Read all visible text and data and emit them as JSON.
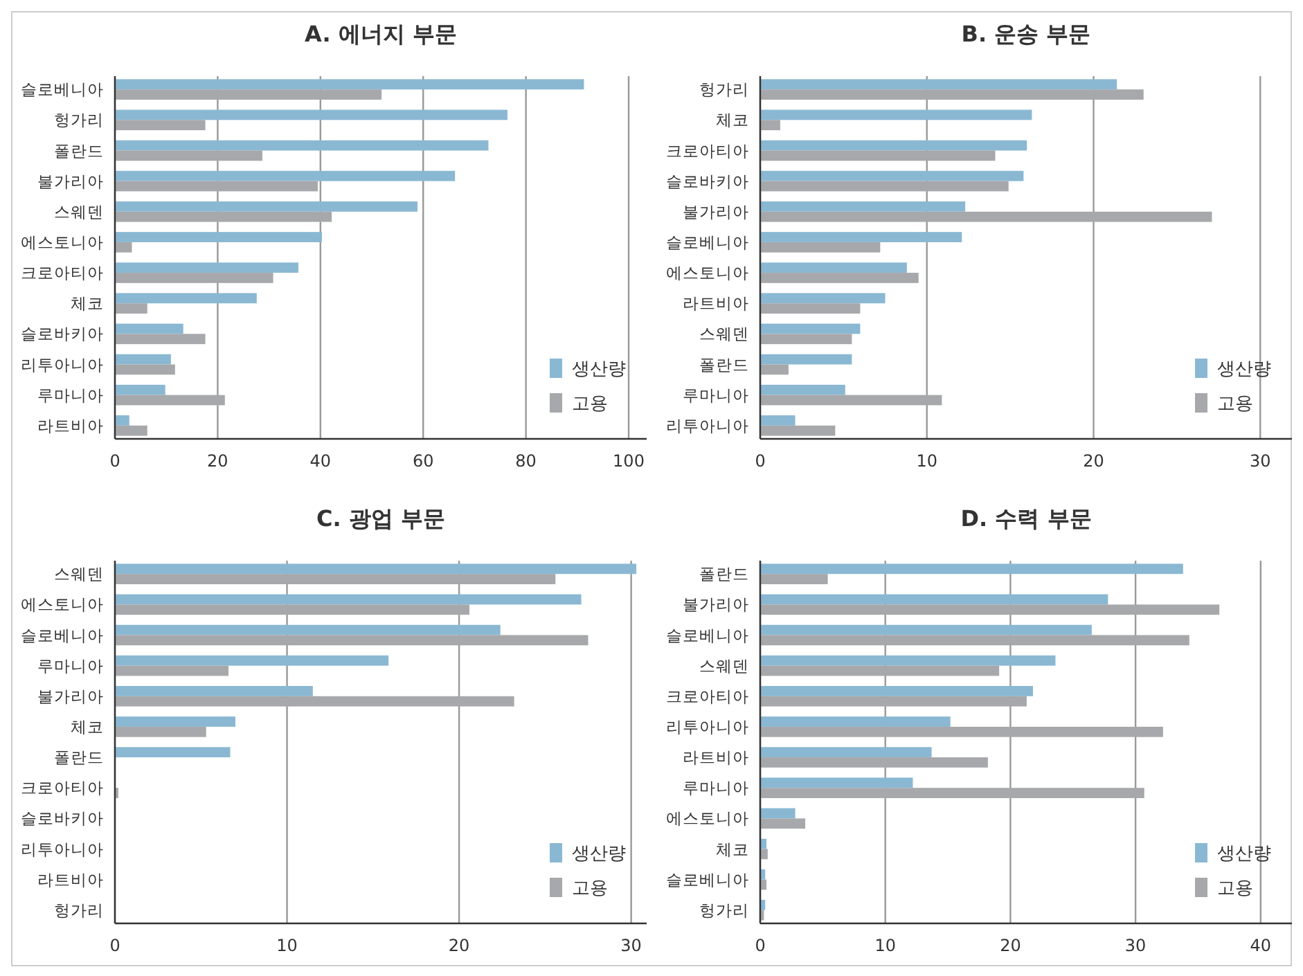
{
  "chart_data": [
    {
      "type": "bar",
      "orientation": "horizontal",
      "title": "A. 에너지 부문",
      "categories": [
        "슬로베니아",
        "헝가리",
        "폴란드",
        "불가리아",
        "스웨덴",
        "에스토니아",
        "크로아티아",
        "체코",
        "슬로바키아",
        "리투아니아",
        "루마니아",
        "라트비아"
      ],
      "series": [
        {
          "name": "생산량",
          "color": "#8ab8d3",
          "values": [
            91.3,
            76.4,
            72.7,
            66.2,
            58.9,
            40.3,
            35.7,
            27.6,
            13.3,
            10.9,
            9.8,
            2.8
          ]
        },
        {
          "name": "고용",
          "color": "#a7a8ab",
          "values": [
            51.9,
            17.6,
            28.7,
            39.5,
            42.2,
            3.3,
            30.8,
            6.3,
            17.6,
            11.7,
            21.4,
            6.3
          ]
        }
      ],
      "xlim": [
        0,
        103.5
      ],
      "xticks": [
        0,
        20,
        40,
        60,
        80,
        100
      ],
      "grid": "x",
      "legend": "bottom right"
    },
    {
      "type": "bar",
      "orientation": "horizontal",
      "title": "B. 운송 부문",
      "categories": [
        "헝가리",
        "체코",
        "크로아티아",
        "슬로바키아",
        "불가리아",
        "슬로베니아",
        "에스토니아",
        "라트비아",
        "스웨덴",
        "폴란드",
        "루마니아",
        "리투아니아"
      ],
      "series": [
        {
          "name": "생산량",
          "color": "#8ab8d3",
          "values": [
            21.4,
            16.3,
            16.0,
            15.8,
            12.3,
            12.1,
            8.8,
            7.5,
            6.0,
            5.5,
            5.1,
            2.1
          ]
        },
        {
          "name": "고용",
          "color": "#a7a8ab",
          "values": [
            23.0,
            1.2,
            14.1,
            14.9,
            27.1,
            7.2,
            9.5,
            6.0,
            5.5,
            1.7,
            10.9,
            4.5
          ]
        }
      ],
      "xlim": [
        0,
        31.9
      ],
      "xticks": [
        0,
        10,
        20,
        30
      ],
      "grid": "x",
      "legend": "bottom right"
    },
    {
      "type": "bar",
      "orientation": "horizontal",
      "title": "C. 광업 부문",
      "categories": [
        "스웨덴",
        "에스토니아",
        "슬로베니아",
        "루마니아",
        "불가리아",
        "체코",
        "폴란드",
        "크로아티아",
        "슬로바키아",
        "리투아니아",
        "라트비아",
        "헝가리"
      ],
      "series": [
        {
          "name": "생산량",
          "color": "#8ab8d3",
          "values": [
            30.3,
            27.1,
            22.4,
            15.9,
            11.5,
            7.0,
            6.7,
            0,
            0,
            0,
            0,
            0
          ]
        },
        {
          "name": "고용",
          "color": "#a7a8ab",
          "values": [
            25.6,
            20.6,
            27.5,
            6.6,
            23.2,
            5.3,
            null,
            0.2,
            0,
            0,
            0,
            0
          ]
        }
      ],
      "xlim": [
        0,
        30.9
      ],
      "xticks": [
        0,
        10,
        20,
        30
      ],
      "grid": "x",
      "legend": "bottom right"
    },
    {
      "type": "bar",
      "orientation": "horizontal",
      "title": "D. 수력 부문",
      "categories": [
        "폴란드",
        "불가리아",
        "슬로베니아",
        "스웨덴",
        "크로아티아",
        "리투아니아",
        "라트비아",
        "루마니아",
        "에스토니아",
        "체코",
        "슬로베니아",
        "헝가리"
      ],
      "series": [
        {
          "name": "생산량",
          "color": "#8ab8d3",
          "values": [
            33.8,
            27.8,
            26.5,
            23.6,
            21.8,
            15.2,
            13.7,
            12.2,
            2.8,
            0.5,
            0.4,
            0.4
          ]
        },
        {
          "name": "고용",
          "color": "#a7a8ab",
          "values": [
            5.4,
            36.7,
            34.3,
            19.1,
            21.3,
            32.2,
            18.2,
            30.7,
            3.6,
            0.6,
            0.5,
            0.3
          ]
        }
      ],
      "xlim": [
        0,
        42.5
      ],
      "xticks": [
        0,
        10,
        20,
        30,
        40
      ],
      "grid": "x",
      "legend": "bottom right"
    }
  ]
}
